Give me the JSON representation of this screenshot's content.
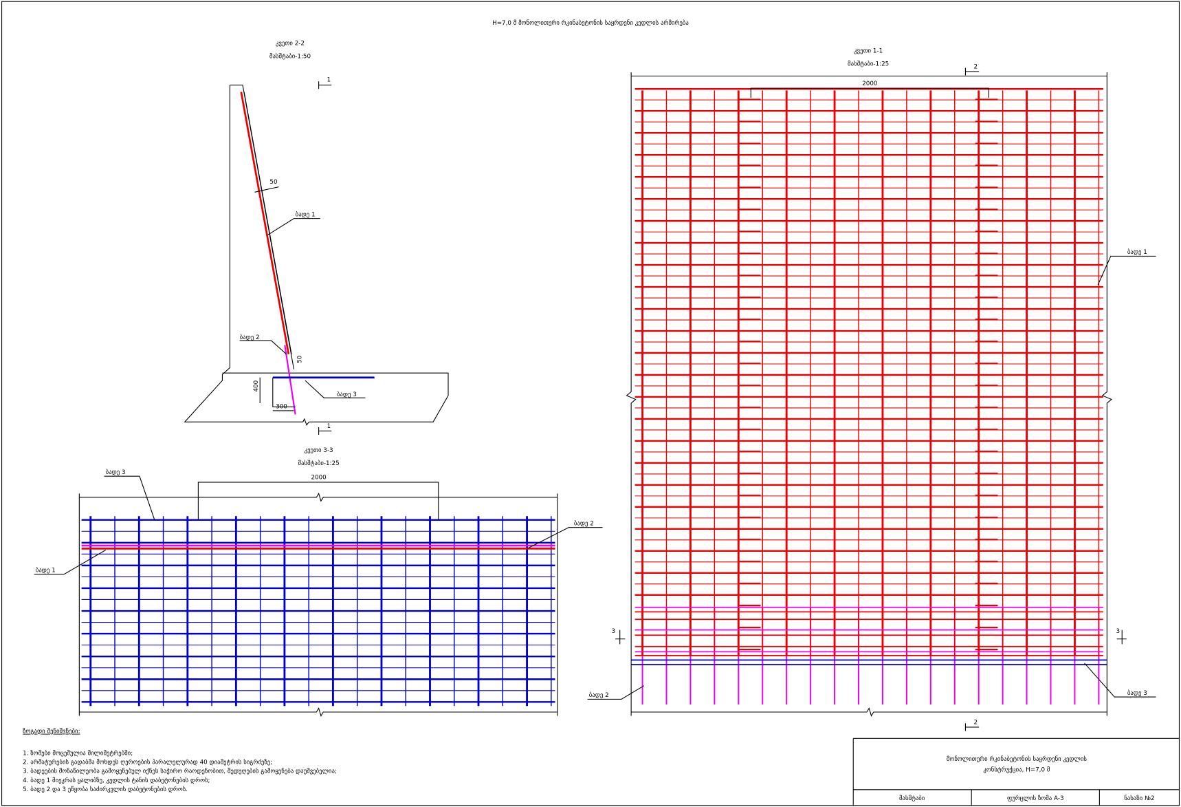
{
  "title": "H=7,0 მ მონოლითური რკინაბეტონის საყრდენი კედლის არმირება",
  "section_2_2": {
    "name": "კვეთი 2-2",
    "scale": "მასშტაბი-1:50",
    "labels": [
      "ბადე 1",
      "ბადე 2",
      "ბადე 3"
    ],
    "dims": [
      "50",
      "50",
      "400",
      "300"
    ],
    "cut_marks": [
      "1",
      "1"
    ]
  },
  "section_1_1": {
    "name": "კვეთი 1-1",
    "scale": "მასშტაბი-1:25",
    "dim": "2000",
    "labels": [
      "ბადე 1",
      "ბადე 2",
      "ბადე 3"
    ],
    "cut_marks": [
      "2",
      "2",
      "3",
      "3"
    ]
  },
  "section_3_3": {
    "name": "კვეთი 3-3",
    "scale": "მასშტაბი-1:25",
    "dim": "2000",
    "labels": [
      "ბადე 3",
      "ბადე 2",
      "ბადე 1"
    ]
  },
  "notes": {
    "heading": "ზოგადი შენიშვნები:",
    "items": [
      "1. ზომები მოცემულია მილიმეტრებში;",
      "2. არმატურების გადაბმა მოხდეს ღეროების პარალელურად 40 დიამეტრის სიგრძეზე;",
      "3. ბადეების მონაწილეობა გამოყენებულ იქნეს საჭირო რაოდენობით, შედუღების გამოყენება დაუშვებელია;",
      "4. ბადე 1 მიეკრას ყალიბზე, კედლის ტანის დაბეტონების დროს;",
      "5. ბადე 2 და 3 ეწყობა საძირკვლის დაბეტონების დროს."
    ]
  },
  "title_block": {
    "title_line_1": "მონოლითური რკინაბეტონის საყრდენი კედლის",
    "title_line_2": "კონსტრუქცია, H=7,0 მ",
    "scale": "მასშტაბი",
    "sheet": "ფურცლის ზომა A-3",
    "drawing": "ნახაზი №2"
  }
}
